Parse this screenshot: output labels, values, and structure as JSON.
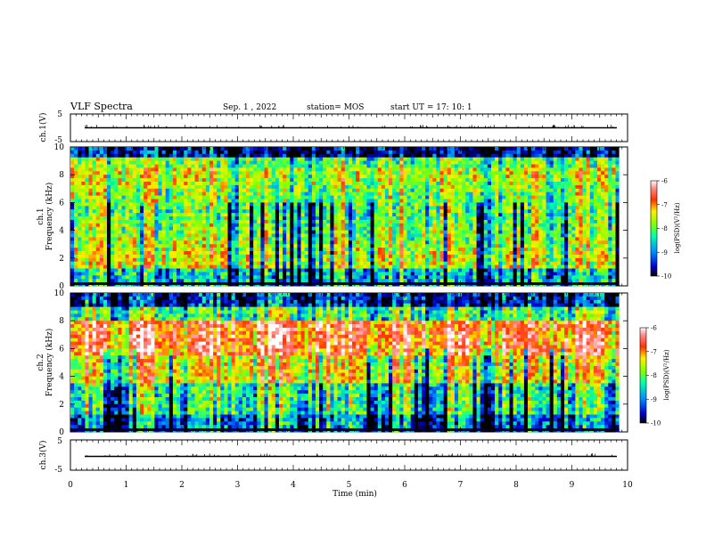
{
  "header": {
    "title": "VLF Spectra",
    "date": "Sep. 1 , 2022",
    "station": "station= MOS",
    "start": "start UT = 17: 10: 1"
  },
  "colorbar": {
    "label": "log(PSD)(V²/Hz)",
    "ticks": [
      "-6",
      "-7",
      "-8",
      "-9",
      "-10"
    ],
    "range": [
      -10,
      -6
    ],
    "colors": [
      "#000000",
      "#0000cc",
      "#0088ff",
      "#00ffaa",
      "#88ff00",
      "#ffee00",
      "#ff3300",
      "#ff8888",
      "#ffffff"
    ]
  },
  "chart_data": [
    {
      "type": "line",
      "panel": "ch.1(V)",
      "ylabel": "ch.1(V)",
      "ylim": [
        -5,
        5
      ],
      "y_ticks": [
        "5",
        "-5"
      ],
      "xlim": [
        0,
        10
      ],
      "series": [
        {
          "x": [
            0,
            9.85
          ],
          "y": [
            0,
            0
          ]
        }
      ]
    },
    {
      "type": "heatmap",
      "panel": "ch.1 spectrogram",
      "ylabel": "ch.1 Frequency (kHz)",
      "ylim": [
        0,
        10
      ],
      "y_ticks": [
        "10",
        "8",
        "6",
        "4",
        "2",
        "0"
      ],
      "xlim": [
        0,
        10
      ],
      "x_extent": [
        0,
        9.85
      ],
      "z_range": [
        -10,
        -6
      ]
    },
    {
      "type": "heatmap",
      "panel": "ch.2 spectrogram",
      "ylabel": "ch.2 Frequency (kHz)",
      "ylim": [
        0,
        10
      ],
      "y_ticks": [
        "10",
        "8",
        "6",
        "4",
        "2",
        "0"
      ],
      "xlim": [
        0,
        10
      ],
      "x_extent": [
        0,
        9.85
      ],
      "z_range": [
        -10,
        -6
      ]
    },
    {
      "type": "line",
      "panel": "ch.3(V)",
      "ylabel": "ch.3(V)",
      "ylim": [
        -5,
        5
      ],
      "y_ticks": [
        "5",
        "-5"
      ],
      "xlim": [
        0,
        10
      ],
      "xlabel": "Time (min)",
      "x_ticks": [
        "0",
        "1",
        "2",
        "3",
        "4",
        "5",
        "6",
        "7",
        "8",
        "9",
        "10"
      ],
      "series": [
        {
          "x": [
            0,
            9.85
          ],
          "y": [
            0,
            0
          ]
        }
      ]
    }
  ]
}
